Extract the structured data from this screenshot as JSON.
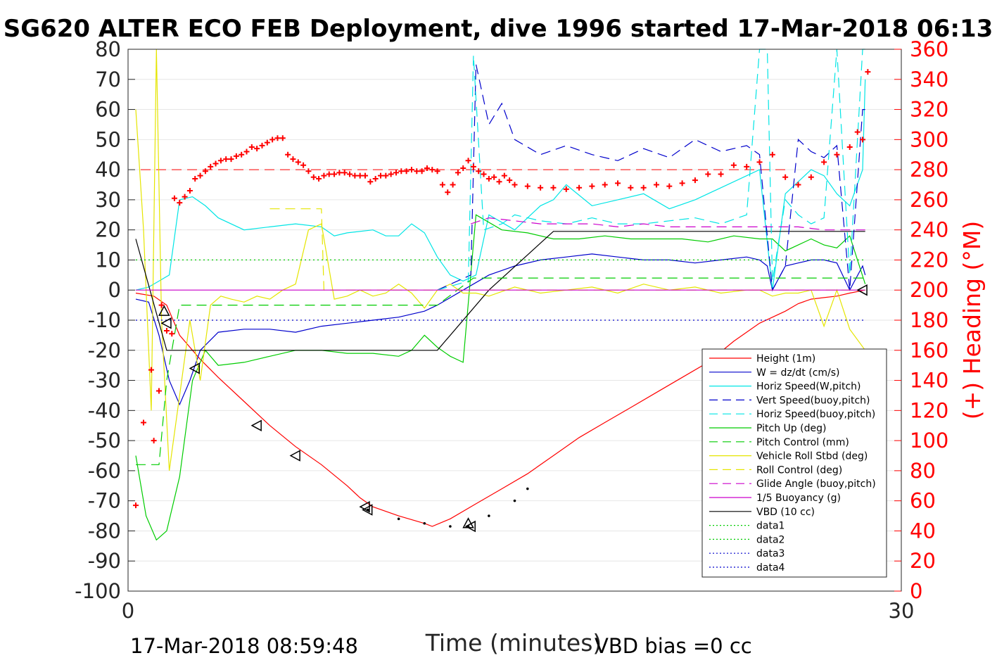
{
  "chart_data": {
    "type": "line",
    "title": "SG620 ALTER ECO FEB Deployment, dive 1996 started 17-Mar-2018 06:13",
    "xlabel": "Time (minutes)",
    "ylabel_right": "(+) Heading (°M)",
    "xlim": [
      0,
      30
    ],
    "ylim": [
      -100,
      80
    ],
    "ylim_right": [
      0,
      360
    ],
    "x_ticks": [
      "0",
      "30"
    ],
    "y_ticks": [
      "80",
      "70",
      "60",
      "50",
      "40",
      "30",
      "20",
      "10",
      "0",
      "-10",
      "-20",
      "-30",
      "-40",
      "-50",
      "-60",
      "-70",
      "-80",
      "-90",
      "-100"
    ],
    "y_right_ticks": [
      "360",
      "340",
      "320",
      "300",
      "280",
      "260",
      "240",
      "220",
      "200",
      "180",
      "160",
      "140",
      "120",
      "100",
      "80",
      "60",
      "40",
      "20",
      "0"
    ],
    "grid": true,
    "legend_position": "lower-right",
    "footer_left": "17-Mar-2018 08:59:48",
    "footer_right": "VBD bias =0 cc",
    "legend": [
      {
        "label": "Height (1m)",
        "color": "#ff0000",
        "style": "solid"
      },
      {
        "label": "W = dz/dt (cm/s)",
        "color": "#0000cc",
        "style": "solid"
      },
      {
        "label": "Horiz Speed(W,pitch)",
        "color": "#00e5e5",
        "style": "solid"
      },
      {
        "label": "Vert Speed(buoy,pitch)",
        "color": "#0000cc",
        "style": "dashed"
      },
      {
        "label": "Horiz Speed(buoy,pitch)",
        "color": "#00e5e5",
        "style": "dashed"
      },
      {
        "label": "Pitch Up (deg)",
        "color": "#00cc00",
        "style": "solid"
      },
      {
        "label": "Pitch Control (mm)",
        "color": "#00cc00",
        "style": "dashed"
      },
      {
        "label": "Vehicle Roll Stbd (deg)",
        "color": "#e5e500",
        "style": "solid"
      },
      {
        "label": "Roll Control (deg)",
        "color": "#e5e500",
        "style": "dashed"
      },
      {
        "label": "Glide Angle (buoy,pitch)",
        "color": "#cc00cc",
        "style": "dashed"
      },
      {
        "label": "1/5 Buoyancy (g)",
        "color": "#cc00cc",
        "style": "solid"
      },
      {
        "label": "VBD (10 cc)",
        "color": "#000000",
        "style": "solid"
      },
      {
        "label": "data1",
        "color": "#00cc00",
        "style": "dotted"
      },
      {
        "label": "data2",
        "color": "#00cc00",
        "style": "dotted"
      },
      {
        "label": "data3",
        "color": "#0000cc",
        "style": "dotted"
      },
      {
        "label": "data4",
        "color": "#0000cc",
        "style": "dotted"
      }
    ],
    "series": [
      {
        "name": "Height (1m)",
        "color": "#ff0000",
        "x": [
          0.3,
          1.0,
          1.5,
          2.0,
          2.8,
          3.5,
          4.5,
          5.5,
          6.5,
          7.5,
          8.5,
          9.0,
          9.5,
          10.5,
          11.5,
          11.8,
          12.5,
          13.5,
          14.5,
          15.5,
          16.5,
          17.5,
          18.5,
          19.5,
          20.5,
          21.5,
          22.5,
          23.5,
          24.5,
          25.5,
          26.0,
          26.5,
          27.0,
          27.5,
          28.0,
          28.6
        ],
        "y": [
          -1,
          -2,
          -5,
          -15,
          -23,
          -29,
          -37,
          -45,
          -52,
          -58,
          -65,
          -69,
          -72,
          -75,
          -77.5,
          -78.5,
          -76,
          -71,
          -66,
          -61,
          -55,
          -49,
          -44,
          -39,
          -34,
          -29,
          -24,
          -17,
          -11,
          -7,
          -4.5,
          -3,
          -2.5,
          -2,
          -1,
          0
        ]
      },
      {
        "name": "W = dz/dt (cm/s)",
        "color": "#0000cc",
        "x": [
          0.3,
          0.8,
          1.2,
          1.6,
          2.0,
          2.4,
          2.8,
          3.5,
          4.5,
          5.5,
          6.5,
          7.5,
          8.5,
          9.5,
          10.5,
          11.5,
          12.0,
          13.0,
          14.0,
          15.0,
          16.0,
          17.0,
          18.0,
          19.0,
          20.0,
          21.0,
          22.0,
          23.0,
          24.0,
          24.5,
          24.8,
          25.0,
          25.5,
          26.0,
          26.5,
          27.0,
          27.5,
          28.0,
          28.5,
          28.6
        ],
        "y": [
          -3,
          -4,
          -15,
          -30,
          -38,
          -30,
          -20,
          -14,
          -13,
          -13,
          -14,
          -12,
          -11,
          -10,
          -9,
          -7,
          -5,
          0,
          5,
          8,
          10,
          11,
          12,
          11,
          10,
          10,
          9,
          10,
          11,
          10,
          8,
          0,
          8,
          9,
          10,
          10,
          9,
          0,
          8,
          5
        ]
      },
      {
        "name": "Horiz Speed(W,pitch)",
        "color": "#00e5e5",
        "x": [
          0.3,
          0.8,
          1.2,
          1.6,
          2.0,
          2.5,
          3.0,
          3.5,
          4.5,
          5.5,
          6.5,
          7.5,
          8.0,
          8.5,
          9.5,
          10.0,
          10.5,
          11.0,
          11.5,
          12.0,
          12.5,
          13.0,
          13.5,
          14.0,
          15.0,
          16.0,
          16.5,
          17.0,
          18.0,
          19.0,
          20.0,
          21.0,
          22.0,
          23.0,
          24.0,
          24.5,
          25.0,
          25.5,
          26.0,
          26.5,
          27.0,
          27.5,
          28.0,
          28.5,
          28.6
        ],
        "y": [
          0,
          1,
          3,
          5,
          30,
          31,
          28,
          24,
          20,
          21,
          22,
          21,
          18,
          19,
          20,
          18,
          18,
          22,
          19,
          11,
          5,
          3,
          5,
          25,
          20,
          28,
          30,
          35,
          28,
          30,
          32,
          27,
          30,
          34,
          38,
          40,
          0,
          32,
          36,
          40,
          38,
          32,
          28,
          40,
          70
        ]
      },
      {
        "name": "Pitch Up (deg)",
        "color": "#00cc00",
        "x": [
          0.3,
          0.7,
          1.1,
          1.5,
          2.0,
          2.5,
          3.0,
          3.5,
          4.5,
          5.5,
          6.5,
          7.5,
          8.5,
          9.5,
          10.5,
          11.0,
          11.5,
          12.0,
          12.5,
          13.0,
          13.5,
          14.5,
          15.5,
          16.5,
          17.5,
          18.5,
          19.5,
          20.5,
          21.5,
          22.5,
          23.5,
          24.5,
          25.0,
          25.5,
          26.0,
          26.5,
          27.0,
          27.5,
          28.0,
          28.6
        ],
        "y": [
          -55,
          -75,
          -83,
          -80,
          -62,
          -30,
          -20,
          -25,
          -24,
          -22,
          -20,
          -20,
          -21,
          -21,
          -22,
          -20,
          -15,
          -19,
          -22,
          -24,
          25,
          20,
          19,
          17,
          17,
          18,
          17,
          17,
          17,
          16,
          18,
          17,
          17,
          13,
          15,
          17,
          15,
          14,
          18,
          2
        ]
      },
      {
        "name": "Vehicle Roll Stbd (deg)",
        "color": "#e5e500",
        "x": [
          0.3,
          0.6,
          0.9,
          1.1,
          1.3,
          1.6,
          2.0,
          2.4,
          2.8,
          3.2,
          3.6,
          4.0,
          4.5,
          5.0,
          5.5,
          6.0,
          6.5,
          7.0,
          7.5,
          8.0,
          8.5,
          9.0,
          9.5,
          10.0,
          10.5,
          11.0,
          11.5,
          12.0,
          12.5,
          13.0,
          13.5,
          14.0,
          15.0,
          16.0,
          17.0,
          18.0,
          19.0,
          20.0,
          21.0,
          22.0,
          23.0,
          24.0,
          24.5,
          25.0,
          25.5,
          26.0,
          26.5,
          27.0,
          27.5,
          28.0,
          28.6
        ],
        "y": [
          60,
          20,
          -40,
          80,
          -10,
          -60,
          -35,
          -10,
          -30,
          -5,
          -2,
          -3,
          -4,
          -2,
          -3,
          0,
          2,
          20,
          22,
          -3,
          -2,
          0,
          -2,
          -1,
          2,
          -1,
          -6,
          0,
          2,
          -1,
          -1,
          -2,
          1,
          -1,
          0,
          1,
          -1,
          2,
          0,
          1,
          -1,
          0,
          0,
          -2,
          -1,
          -1,
          0,
          -12,
          0,
          -13,
          -20
        ]
      },
      {
        "name": "VBD (10 cc)",
        "color": "#000000",
        "x": [
          0.3,
          1.5,
          12.0,
          14.0,
          16.5,
          28.6
        ],
        "y": [
          17,
          -20,
          -20,
          0,
          19.5,
          19.5
        ]
      },
      {
        "name": "Vert Speed(buoy,pitch)",
        "color": "#0000cc",
        "dashed": true,
        "x": [
          12.0,
          13.3,
          13.5,
          14.0,
          14.5,
          15.0,
          16.0,
          17.0,
          18.0,
          19.0,
          20.0,
          21.0,
          22.0,
          23.0,
          24.0,
          24.5,
          25.0,
          25.5,
          26.0,
          26.5,
          27.0,
          27.5,
          28.0,
          28.5,
          28.6
        ],
        "y": [
          0,
          5,
          75,
          55,
          62,
          50,
          45,
          48,
          45,
          43,
          47,
          44,
          50,
          46,
          48,
          45,
          0,
          8,
          50,
          46,
          44,
          48,
          0,
          60,
          60
        ]
      },
      {
        "name": "Horiz Speed(buoy,pitch)",
        "color": "#00e5e5",
        "dashed": true,
        "x": [
          12.0,
          13.2,
          13.4,
          13.8,
          14.5,
          15.0,
          16.0,
          17.0,
          18.0,
          19.0,
          20.0,
          21.0,
          22.0,
          23.0,
          24.0,
          24.5,
          24.8,
          25.0,
          25.5,
          26.0,
          26.5,
          27.0,
          27.5,
          28.0,
          28.5,
          28.6
        ],
        "y": [
          0,
          3,
          78,
          20,
          22,
          25,
          23,
          22,
          24,
          22,
          22,
          23,
          24,
          22,
          25,
          80,
          80,
          3,
          30,
          25,
          22,
          24,
          80,
          5,
          80,
          80
        ]
      },
      {
        "name": "Glide Angle (buoy,pitch)",
        "color": "#cc00cc",
        "dashed": true,
        "x": [
          13.3,
          14.0,
          15.0,
          16.0,
          17.0,
          18.0,
          19.0,
          20.0,
          21.0,
          22.0,
          23.0,
          24.0,
          25.0,
          26.0,
          27.0,
          28.0,
          28.6
        ],
        "y": [
          22,
          24,
          23,
          22,
          22,
          22,
          21,
          22,
          21,
          21,
          21,
          21,
          21,
          21,
          20,
          20,
          20
        ]
      },
      {
        "name": "Pitch Control (mm)",
        "color": "#00cc00",
        "dashed": true,
        "x": [
          0.3,
          1.2,
          1.5,
          2.0,
          12.0,
          13.4,
          28.6
        ],
        "y": [
          -58,
          -58,
          -30,
          -5,
          -5,
          4,
          4
        ]
      },
      {
        "name": "Roll Control (deg)",
        "color": "#e5e500",
        "dashed": true,
        "x": [
          5.5,
          7.5,
          7.6,
          12.0,
          28.6
        ],
        "y": [
          27,
          27,
          0,
          0,
          0
        ]
      },
      {
        "name": "1/5 Buoyancy (g)",
        "color": "#cc00cc",
        "x": [
          0.3,
          28.6
        ],
        "y": [
          0,
          0
        ]
      },
      {
        "name": "data1",
        "color": "#00cc00",
        "dotted": true,
        "x": [
          0.3,
          28.6
        ],
        "y": [
          10,
          10
        ]
      },
      {
        "name": "data3",
        "color": "#0000cc",
        "dotted": true,
        "x": [
          0.3,
          28.6
        ],
        "y": [
          -10,
          -10
        ]
      }
    ],
    "heading_points": {
      "name": "(+) Heading (°M)",
      "color": "#ff0000",
      "x": [
        0.3,
        0.6,
        0.9,
        1.0,
        1.2,
        1.3,
        1.5,
        1.7,
        1.8,
        2.0,
        2.2,
        2.4,
        2.6,
        2.8,
        3.0,
        3.2,
        3.4,
        3.6,
        3.8,
        4.0,
        4.2,
        4.4,
        4.6,
        4.8,
        5.0,
        5.2,
        5.4,
        5.6,
        5.8,
        6.0,
        6.2,
        6.4,
        6.6,
        6.8,
        7.0,
        7.2,
        7.4,
        7.6,
        7.8,
        8.0,
        8.2,
        8.4,
        8.6,
        8.8,
        9.0,
        9.2,
        9.4,
        9.6,
        9.8,
        10.0,
        10.2,
        10.4,
        10.6,
        10.8,
        11.0,
        11.2,
        11.4,
        11.6,
        11.8,
        12.0,
        12.2,
        12.4,
        12.6,
        12.8,
        13.0,
        13.2,
        13.4,
        13.6,
        13.8,
        14.0,
        14.2,
        14.4,
        14.6,
        14.8,
        15.0,
        15.5,
        16.0,
        16.5,
        17.0,
        17.5,
        18.0,
        18.5,
        19.0,
        19.5,
        20.0,
        20.5,
        21.0,
        21.5,
        22.0,
        22.5,
        23.0,
        23.5,
        24.0,
        24.5,
        25.0,
        25.5,
        26.0,
        26.5,
        27.0,
        27.5,
        28.0,
        28.3,
        28.5,
        28.7
      ],
      "y": [
        57,
        112,
        147,
        100,
        133,
        190,
        173,
        171,
        261,
        258,
        262,
        266,
        274,
        276,
        279,
        282,
        284,
        286,
        287,
        287,
        289,
        290,
        292,
        295,
        294,
        296,
        298,
        300,
        301,
        301,
        290,
        287,
        285,
        283,
        279,
        275,
        274,
        276,
        277,
        277,
        278,
        278,
        277,
        276,
        276,
        276,
        272,
        274,
        276,
        276,
        277,
        278,
        279,
        279,
        280,
        279,
        279,
        281,
        280,
        279,
        270,
        265,
        270,
        278,
        281,
        286,
        282,
        279,
        277,
        274,
        275,
        272,
        276,
        273,
        270,
        269,
        268,
        268,
        267,
        268,
        269,
        270,
        271,
        268,
        268,
        270,
        269,
        271,
        273,
        277,
        277,
        283,
        282,
        285,
        290,
        275,
        270,
        275,
        285,
        290,
        295,
        305,
        300,
        345
      ]
    },
    "markers_triangle_up": {
      "x": [
        1.4,
        13.2
      ],
      "y": [
        -7,
        -77.5
      ]
    },
    "markers_triangle_left": {
      "x": [
        1.5,
        2.6,
        5.0,
        6.5,
        9.2,
        9.3,
        13.3,
        28.5
      ],
      "y": [
        -11,
        -26,
        -45,
        -55,
        -72,
        -73,
        -78.5,
        0
      ]
    },
    "markers_circle_path": {
      "x": [
        9.3,
        10.5,
        11.5,
        12.5,
        13.2,
        14.0,
        15.0,
        15.5
      ],
      "y": [
        -73,
        -76,
        -77.5,
        -78.5,
        -78.5,
        -75,
        -70,
        -66
      ]
    }
  }
}
